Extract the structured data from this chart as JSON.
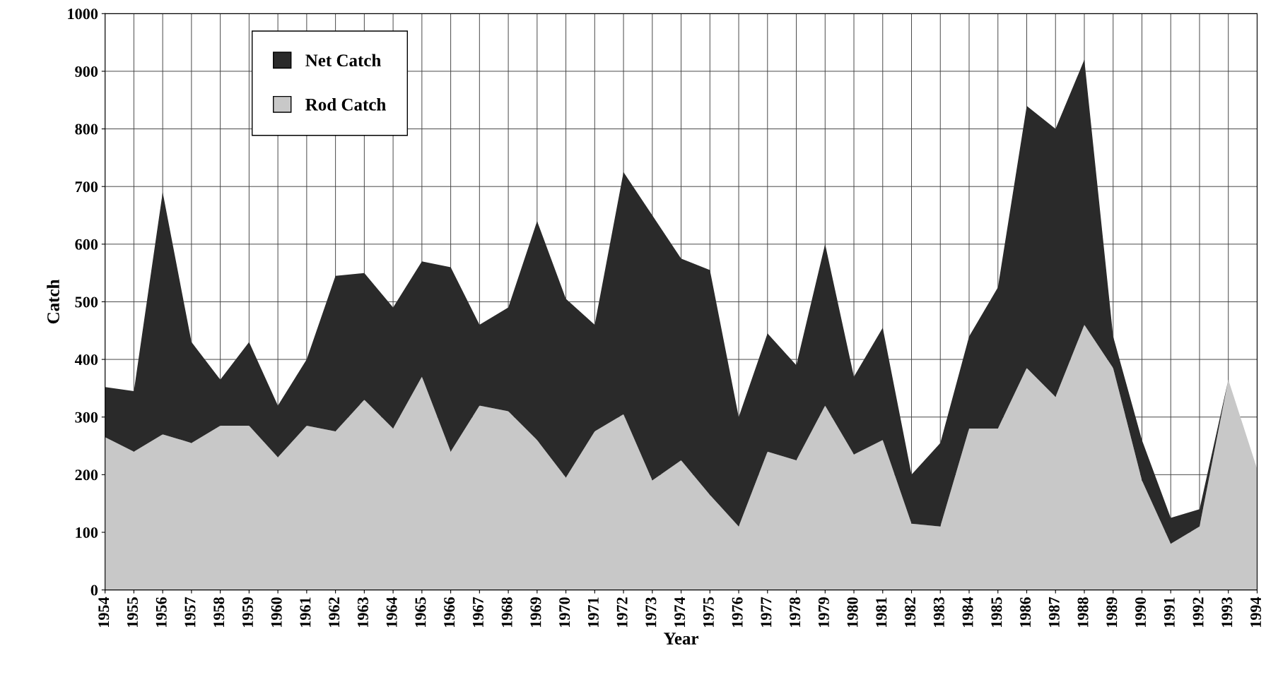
{
  "chart_data": {
    "type": "area",
    "stacked": true,
    "xlabel": "Year",
    "ylabel": "Catch",
    "categories": [
      "1954",
      "1955",
      "1956",
      "1957",
      "1958",
      "1959",
      "1960",
      "1961",
      "1962",
      "1963",
      "1964",
      "1965",
      "1966",
      "1967",
      "1968",
      "1969",
      "1970",
      "1971",
      "1972",
      "1973",
      "1974",
      "1975",
      "1976",
      "1977",
      "1978",
      "1979",
      "1980",
      "1981",
      "1982",
      "1983",
      "1984",
      "1985",
      "1986",
      "1987",
      "1988",
      "1989",
      "1990",
      "1991",
      "1992",
      "1993",
      "1994"
    ],
    "series": [
      {
        "name": "Rod Catch",
        "color": "#c8c8c8",
        "values": [
          265,
          240,
          270,
          255,
          285,
          285,
          230,
          285,
          275,
          330,
          280,
          370,
          240,
          320,
          310,
          260,
          195,
          275,
          305,
          190,
          225,
          165,
          110,
          240,
          225,
          320,
          235,
          260,
          115,
          110,
          280,
          280,
          385,
          335,
          460,
          385,
          190,
          80,
          110,
          365,
          210
        ]
      },
      {
        "name": "Net Catch",
        "color": "#2a2a2a",
        "values": [
          87,
          105,
          420,
          175,
          80,
          145,
          90,
          115,
          270,
          220,
          210,
          200,
          320,
          140,
          180,
          380,
          310,
          185,
          420,
          460,
          350,
          390,
          190,
          205,
          165,
          280,
          135,
          195,
          85,
          145,
          160,
          245,
          455,
          465,
          460,
          55,
          70,
          45,
          30,
          0,
          0
        ]
      }
    ],
    "ylim": [
      0,
      1000
    ],
    "yticks": [
      0,
      100,
      200,
      300,
      400,
      500,
      600,
      700,
      800,
      900,
      1000
    ],
    "grid": true,
    "legend": "top left"
  }
}
